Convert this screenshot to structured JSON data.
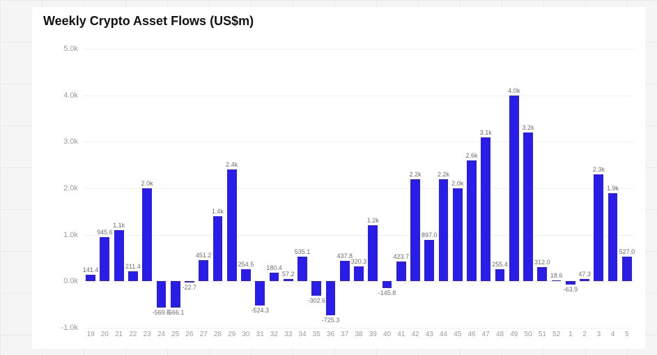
{
  "chart": {
    "type": "bar",
    "title": "Weekly Crypto Asset Flows (US$m)",
    "title_fontsize": 18,
    "title_fontweight": 600,
    "title_color": "#111111",
    "background_color": "#ffffff",
    "page_background_color": "#f5f5f5",
    "grid_color": "#f0f0f0",
    "axis_label_color": "#9a9a9a",
    "bar_label_color": "#6b6b6b",
    "bar_color": "#2b1de8",
    "bar_width_ratio": 0.68,
    "yaxis": {
      "min": -1000,
      "max": 5000,
      "tick_step": 1000,
      "ticks": [
        -1000,
        0,
        1000,
        2000,
        3000,
        4000,
        5000
      ],
      "tick_labels": [
        "-1.0k",
        "0.0k",
        "1.0k",
        "2.0k",
        "3.0k",
        "4.0k",
        "5.0k"
      ],
      "label_fontsize": 11
    },
    "xaxis": {
      "categories": [
        "19",
        "20",
        "21",
        "22",
        "23",
        "24",
        "25",
        "26",
        "27",
        "28",
        "29",
        "30",
        "31",
        "32",
        "33",
        "34",
        "35",
        "36",
        "37",
        "38",
        "39",
        "40",
        "41",
        "42",
        "43",
        "44",
        "45",
        "46",
        "47",
        "48",
        "49",
        "50",
        "51",
        "52",
        "1",
        "2",
        "3",
        "4",
        "5"
      ],
      "label_fontsize": 10
    },
    "values": [
      141.4,
      945.6,
      1100,
      211.4,
      2000,
      -569.5,
      -566.1,
      -22.7,
      451.2,
      1400,
      2400,
      254.5,
      -524.3,
      180.4,
      57.2,
      535.1,
      -302.6,
      -725.3,
      437.8,
      320.3,
      1200,
      -145.8,
      423.7,
      2200,
      897.0,
      2200,
      2000,
      2600,
      3100,
      255.4,
      4000,
      3200,
      312.0,
      18.6,
      -63.9,
      47.3,
      2300,
      1900,
      527.0
    ],
    "value_labels": [
      "141.4",
      "945.6",
      "1.1k",
      "211.4",
      "2.0k",
      "-569.5",
      "-566.1",
      "-22.7",
      "451.2",
      "1.4k",
      "2.4k",
      "254.5",
      "-524.3",
      "180.4",
      "57.2",
      "535.1",
      "-302.6",
      "-725.3",
      "437.8",
      "320.3",
      "1.2k",
      "-145.8",
      "423.7",
      "2.2k",
      "897.0",
      "2.2k",
      "2.0k",
      "2.6k",
      "3.1k",
      "255.4",
      "4.0k",
      "3.2k",
      "312.0",
      "18.6",
      "-63.9",
      "47.3",
      "2.3k",
      "1.9k",
      "527.0"
    ],
    "value_label_fontsize": 9
  }
}
